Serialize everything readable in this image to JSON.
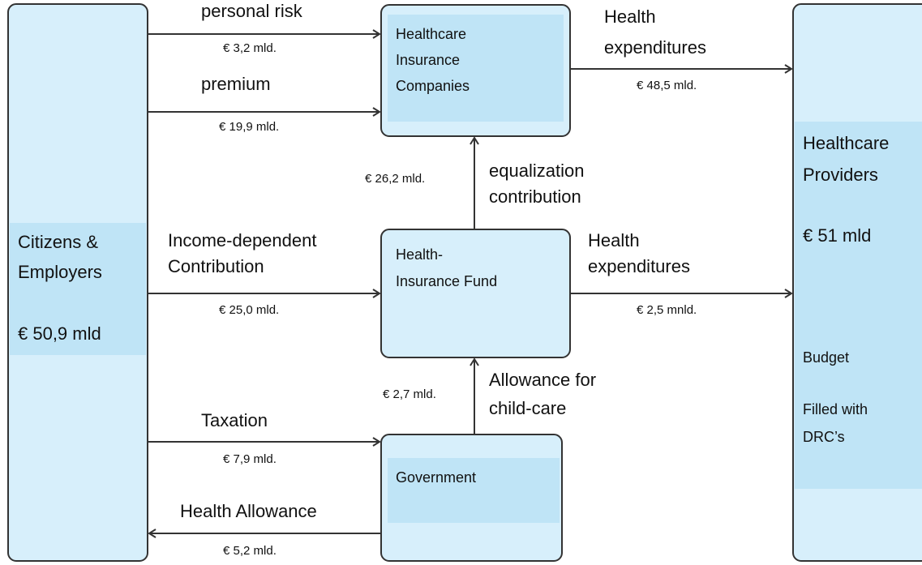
{
  "nodes": [
    {
      "lines": [
        "Citizens &",
        "Employers",
        "€ 50,9 mld"
      ]
    },
    {
      "lines": [
        "Healthcare",
        "Insurance",
        "Companies"
      ]
    },
    {
      "lines": [
        "Health-",
        "Insurance Fund"
      ]
    },
    {
      "lines": [
        "Government"
      ]
    },
    {
      "lines": [
        "Healthcare",
        "Providers",
        "€ 51 mld",
        "Budget",
        "Filled with",
        "DRC’s"
      ]
    }
  ],
  "edges": [
    {
      "label": [
        "personal risk"
      ],
      "amount": "€ 3,2 mld."
    },
    {
      "label": [
        "premium"
      ],
      "amount": "€ 19,9 mld."
    },
    {
      "label": [
        "Income-dependent",
        "Contribution"
      ],
      "amount": "€ 25,0 mld."
    },
    {
      "label": [
        "Taxation"
      ],
      "amount": "€ 7,9 mld."
    },
    {
      "label": [
        "Health Allowance"
      ],
      "amount": "€ 5,2 mld."
    },
    {
      "label": [
        "Health",
        "expenditures"
      ],
      "amount": "€ 48,5 mld."
    },
    {
      "label": [
        "Health",
        "expenditures"
      ],
      "amount": "€ 2,5 mnld."
    },
    {
      "label": [
        "equalization",
        "contribution"
      ],
      "amount": "€ 26,2 mld."
    },
    {
      "label": [
        "Allowance for",
        "child-care"
      ],
      "amount": "€ 2,7 mld."
    }
  ]
}
